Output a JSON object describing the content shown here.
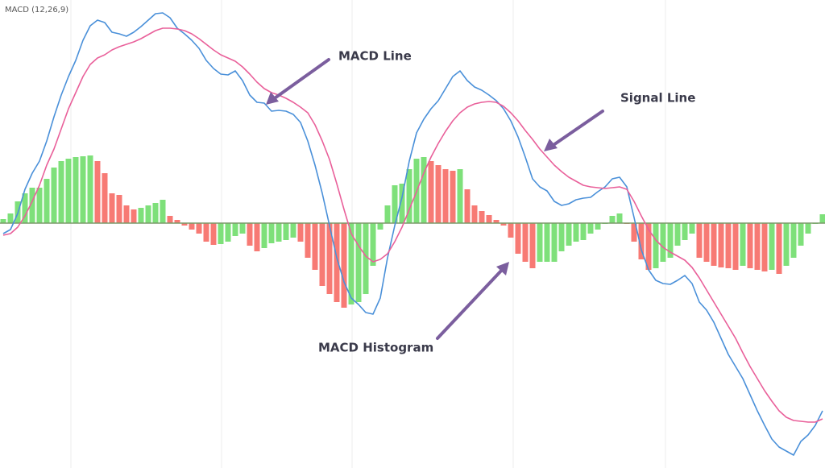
{
  "chart_data": {
    "type": "macd",
    "title": "MACD (12,26,9)",
    "ylim": [
      -30.4,
      27.7
    ],
    "series": [
      {
        "name": "MACD Line",
        "type": "line",
        "color": "#4a90d9",
        "values": [
          -1.3,
          -0.8,
          1.2,
          4.2,
          6.2,
          7.7,
          10.2,
          13.2,
          15.9,
          18.2,
          20.2,
          22.7,
          24.5,
          25.2,
          24.9,
          23.7,
          23.5,
          23.2,
          23.7,
          24.4,
          25.2,
          26.0,
          26.1,
          25.5,
          24.2,
          23.5,
          22.7,
          21.7,
          20.2,
          19.2,
          18.5,
          18.4,
          18.9,
          17.7,
          15.9,
          15.0,
          14.9,
          13.9,
          14.0,
          13.9,
          13.5,
          12.5,
          10.2,
          7.2,
          3.7,
          -0.3,
          -4.3,
          -7.3,
          -9.3,
          -10.1,
          -11.1,
          -11.3,
          -9.3,
          -4.3,
          -0.3,
          3.2,
          7.7,
          11.2,
          12.9,
          14.2,
          15.2,
          16.7,
          18.2,
          18.9,
          17.7,
          16.9,
          16.5,
          15.9,
          15.2,
          14.2,
          12.7,
          10.7,
          8.2,
          5.5,
          4.5,
          4.0,
          2.7,
          2.2,
          2.4,
          2.9,
          3.1,
          3.2,
          3.9,
          4.5,
          5.5,
          5.7,
          4.5,
          0.7,
          -3.3,
          -5.8,
          -7.1,
          -7.5,
          -7.6,
          -7.1,
          -6.5,
          -7.5,
          -9.8,
          -10.8,
          -12.3,
          -14.3,
          -16.3,
          -17.8,
          -19.3,
          -21.3,
          -23.3,
          -25.1,
          -26.8,
          -27.8,
          -28.3,
          -28.8,
          -27.1,
          -26.3,
          -25.1,
          -23.3
        ]
      },
      {
        "name": "Signal Line",
        "type": "line",
        "color": "#e9609a",
        "values": [
          -1.5,
          -1.3,
          -0.5,
          0.9,
          2.7,
          4.7,
          7.2,
          9.2,
          11.7,
          14.2,
          16.2,
          18.2,
          19.7,
          20.5,
          20.9,
          21.5,
          21.9,
          22.2,
          22.5,
          22.9,
          23.4,
          23.9,
          24.2,
          24.2,
          24.1,
          23.9,
          23.5,
          22.9,
          22.2,
          21.5,
          20.9,
          20.5,
          20.1,
          19.4,
          18.5,
          17.5,
          16.7,
          16.2,
          15.9,
          15.5,
          15.0,
          14.4,
          13.7,
          12.2,
          10.2,
          7.9,
          4.9,
          1.7,
          -1.3,
          -2.8,
          -4.1,
          -4.8,
          -4.5,
          -3.8,
          -2.3,
          -0.5,
          1.7,
          3.9,
          6.2,
          8.2,
          9.9,
          11.4,
          12.7,
          13.7,
          14.4,
          14.8,
          15.0,
          15.1,
          15.0,
          14.5,
          13.7,
          12.7,
          11.5,
          10.4,
          9.2,
          8.2,
          7.2,
          6.4,
          5.7,
          5.2,
          4.7,
          4.5,
          4.4,
          4.3,
          4.4,
          4.5,
          4.2,
          2.7,
          0.9,
          -0.8,
          -2.1,
          -3.0,
          -3.6,
          -4.1,
          -4.6,
          -5.5,
          -6.8,
          -8.3,
          -9.8,
          -11.3,
          -12.8,
          -14.3,
          -16.1,
          -17.8,
          -19.3,
          -20.8,
          -22.1,
          -23.3,
          -24.1,
          -24.5,
          -24.6,
          -24.7,
          -24.7,
          -24.3
        ]
      },
      {
        "name": "MACD Histogram",
        "type": "bar",
        "up_color": "#7ee07a",
        "down_color": "#f77a74",
        "values": [
          0.5,
          1.2,
          2.7,
          3.7,
          4.4,
          4.4,
          5.5,
          6.9,
          7.7,
          8.0,
          8.2,
          8.3,
          8.4,
          7.7,
          6.2,
          3.7,
          3.5,
          2.2,
          1.7,
          1.9,
          2.2,
          2.5,
          2.9,
          0.9,
          0.4,
          -0.3,
          -0.8,
          -1.3,
          -2.3,
          -2.7,
          -2.6,
          -2.3,
          -1.6,
          -1.3,
          -2.8,
          -3.5,
          -3.1,
          -2.5,
          -2.3,
          -2.1,
          -1.8,
          -2.3,
          -4.3,
          -5.8,
          -7.8,
          -8.8,
          -9.8,
          -10.5,
          -10.1,
          -9.8,
          -8.8,
          -5.3,
          -0.8,
          2.2,
          4.7,
          4.9,
          6.7,
          8.0,
          8.2,
          7.7,
          7.2,
          6.7,
          6.5,
          6.7,
          4.2,
          2.2,
          1.5,
          1.0,
          0.4,
          -0.3,
          -1.8,
          -3.8,
          -4.8,
          -5.6,
          -4.8,
          -4.8,
          -4.8,
          -3.5,
          -2.8,
          -2.3,
          -2.1,
          -1.3,
          -0.8,
          -0.1,
          0.9,
          1.2,
          -0.1,
          -2.3,
          -4.5,
          -5.8,
          -5.6,
          -4.8,
          -4.3,
          -2.8,
          -2.1,
          -1.3,
          -4.3,
          -4.8,
          -5.3,
          -5.5,
          -5.6,
          -5.8,
          -5.3,
          -5.6,
          -5.8,
          -6.0,
          -5.8,
          -6.3,
          -5.3,
          -4.3,
          -2.8,
          -1.3,
          -0.1,
          1.1
        ]
      }
    ]
  }
}
